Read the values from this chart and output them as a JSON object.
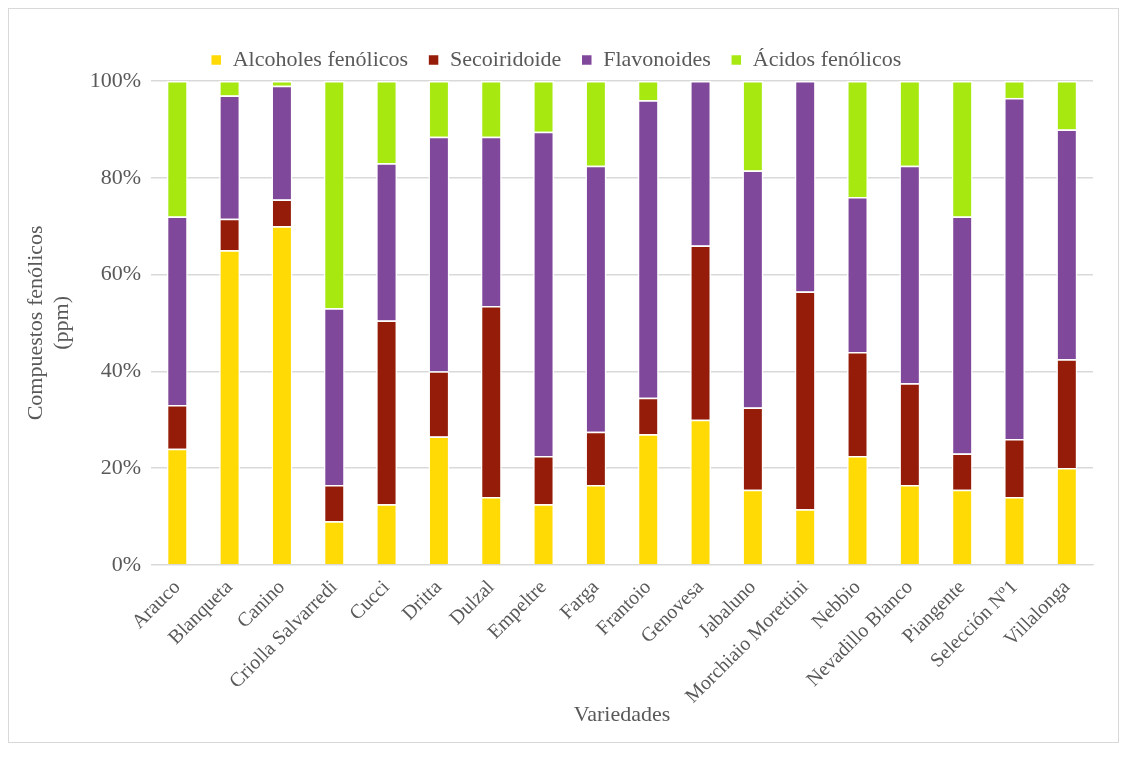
{
  "chart_data": {
    "type": "bar",
    "stacked": true,
    "xlabel": "Variedades",
    "ylabel": "Compuestos fenólicos (ppm)",
    "categories": [
      "Arauco",
      "Blanqueta",
      "Canino",
      "Criolla Salvarredi",
      "Cucci",
      "Dritta",
      "Dulzal",
      "Empeltre",
      "Farga",
      "Frantoio",
      "Genovesa",
      "Jabaluno",
      "Morchiaio Morettini",
      "Nebbio",
      "Nevadillo Blanco",
      "Piangente",
      "Selección Nº1",
      "Villalonga"
    ],
    "series": [
      {
        "name": "Alcoholes fenólicos",
        "color": "#ffda05",
        "values": [
          24,
          65,
          70,
          9,
          12.5,
          26.5,
          14,
          12.5,
          16.5,
          27,
          30,
          15.5,
          11.5,
          22.5,
          16.5,
          15.5,
          14,
          20
        ]
      },
      {
        "name": "Secoiridoide",
        "color": "#941c08",
        "values": [
          9,
          6.5,
          5.5,
          7.5,
          38,
          13.5,
          39.5,
          10,
          11,
          7.5,
          36,
          17,
          45,
          21.5,
          21,
          7.5,
          12,
          22.5
        ]
      },
      {
        "name": "Flavonoides",
        "color": "#80489a",
        "values": [
          39,
          25.5,
          23.5,
          36.5,
          32.5,
          48.5,
          35,
          67,
          55,
          61.5,
          34,
          49,
          43.5,
          32,
          45,
          49,
          70.5,
          47.5
        ]
      },
      {
        "name": "Ácidos fenólicos",
        "color": "#a6e810",
        "values": [
          28,
          3,
          1,
          47,
          17,
          11.5,
          11.5,
          10.5,
          17.5,
          4,
          0,
          18.5,
          0,
          24,
          17.5,
          28,
          3.5,
          10
        ]
      }
    ],
    "ylim": [
      0,
      100
    ],
    "yticks": [
      {
        "value": 0,
        "label": "0%"
      },
      {
        "value": 20,
        "label": "20%"
      },
      {
        "value": 40,
        "label": "40%"
      },
      {
        "value": 60,
        "label": "60%"
      },
      {
        "value": 80,
        "label": "80%"
      },
      {
        "value": 100,
        "label": "100%"
      }
    ],
    "grid": "y",
    "legend": "top"
  }
}
